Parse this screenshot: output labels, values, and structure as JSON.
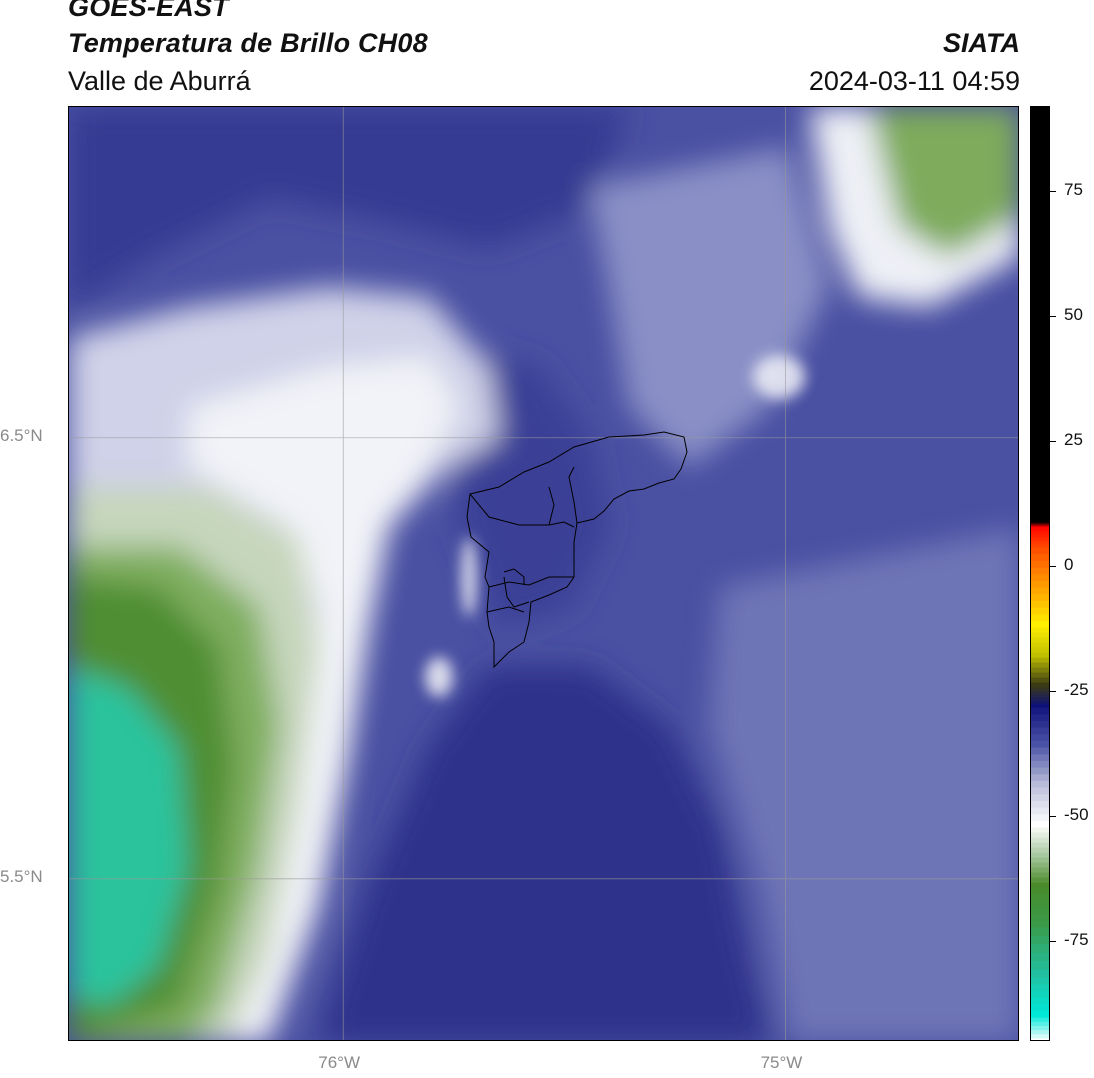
{
  "header": {
    "line1": "GOES-EAST",
    "line2": "Temperatura de Brillo CH08",
    "line3": "Valle de Aburrá",
    "brand": "SIATA",
    "timestamp": "2024-03-11 04:59"
  },
  "axes": {
    "lat_labels": [
      {
        "value": 6.5,
        "text": "6.5°N"
      },
      {
        "value": 5.5,
        "text": "5.5°N"
      }
    ],
    "lon_labels": [
      {
        "value": -76,
        "text": "76°W"
      },
      {
        "value": -75,
        "text": "75°W"
      }
    ],
    "lat_range": [
      5.13,
      7.25
    ],
    "lon_range": [
      -76.62,
      -74.47
    ],
    "grid": true
  },
  "colorbar": {
    "range": [
      -95,
      92
    ],
    "ticks": [
      {
        "value": 75,
        "text": "75"
      },
      {
        "value": 50,
        "text": "50"
      },
      {
        "value": 25,
        "text": "25"
      },
      {
        "value": 0,
        "text": "0"
      },
      {
        "value": -25,
        "text": "-25"
      },
      {
        "value": -50,
        "text": "-50"
      },
      {
        "value": -75,
        "text": "-75"
      }
    ],
    "stops": [
      {
        "value": -95,
        "color": "#ffffff"
      },
      {
        "value": -90,
        "color": "#00e8d8"
      },
      {
        "value": -82,
        "color": "#22c0a0"
      },
      {
        "value": -72,
        "color": "#3a9a48"
      },
      {
        "value": -64,
        "color": "#4a8a2a"
      },
      {
        "value": -58,
        "color": "#a8c8a0"
      },
      {
        "value": -52,
        "color": "#ffffff"
      },
      {
        "value": -44,
        "color": "#b8bcd8"
      },
      {
        "value": -36,
        "color": "#4a52a6"
      },
      {
        "value": -28,
        "color": "#0e107a"
      },
      {
        "value": -24,
        "color": "#3a3a14"
      },
      {
        "value": -18,
        "color": "#c0c000"
      },
      {
        "value": -12,
        "color": "#ffee00"
      },
      {
        "value": -4,
        "color": "#ff9900"
      },
      {
        "value": 4,
        "color": "#ff4400"
      },
      {
        "value": 8,
        "color": "#ff0000"
      },
      {
        "value": 9,
        "color": "#000000"
      },
      {
        "value": 92,
        "color": "#000000"
      }
    ]
  },
  "palette": {
    "deep_blue": "#2a2e86",
    "mid_blue": "#454b9e",
    "light_blue": "#7a80bc",
    "pale": "#d8dbec",
    "white": "#f4f5fa",
    "pale_green": "#c9d8c0",
    "green": "#5f9740",
    "teal": "#2cc59e"
  }
}
